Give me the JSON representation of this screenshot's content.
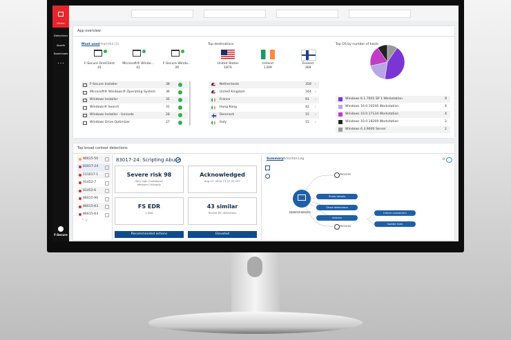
{
  "sidebar": {
    "items": [
      "Home",
      "Detections",
      "Assets",
      "Downloads",
      "• • •"
    ],
    "logo": "F-Secure"
  },
  "app_overview": {
    "title": "App overview",
    "tabs": [
      "Most used",
      "Harmful (1)"
    ],
    "top_apps": [
      {
        "name": "F-Secure OneClient",
        "count": "41"
      },
      {
        "name": "Microsoft® Windo...",
        "count": "41"
      },
      {
        "name": "F-Secure Windo...",
        "count": "39"
      }
    ],
    "rows": [
      {
        "name": "F-Secure Installer",
        "count": "38"
      },
      {
        "name": "Microsoft® Windows® Operating System",
        "count": "36"
      },
      {
        "name": "Windows Installer",
        "count": "35"
      },
      {
        "name": "Windows® Search",
        "count": "31"
      },
      {
        "name": "Windows Installer - Unicode",
        "count": "28"
      },
      {
        "name": "Windows Drive Optimizer",
        "count": "27"
      }
    ]
  },
  "destinations": {
    "title": "Top destinations",
    "top": [
      {
        "name": "United States",
        "count": "1874"
      },
      {
        "name": "Ireland",
        "count": "1309"
      },
      {
        "name": "Finland",
        "count": "368"
      }
    ],
    "rows": [
      {
        "name": "Netherlands",
        "count": "358"
      },
      {
        "name": "United Kingdom",
        "count": "164"
      },
      {
        "name": "France",
        "count": "91"
      },
      {
        "name": "Hong Kong",
        "count": "42"
      },
      {
        "name": "Denmark",
        "count": "15"
      },
      {
        "name": "Italy",
        "count": "15"
      }
    ]
  },
  "os": {
    "title": "Top OS by number of hosts",
    "items": [
      {
        "name": "Windows 6.1.7601 SP 1 Workstation",
        "value": 9,
        "color": "#7a35d4"
      },
      {
        "name": "Windows 10.0.10240 Workstation",
        "value": 4,
        "color": "#b9a6e6"
      },
      {
        "name": "Windows 10.0.17134 Workstation",
        "value": 4,
        "color": "#c23bc6"
      },
      {
        "name": "Windows 10.0.18299 Workstation",
        "value": 2,
        "color": "#222222"
      },
      {
        "name": "Windows 6.3.9600 Server",
        "value": 2,
        "color": "#9a9a9a"
      }
    ]
  },
  "detections": {
    "title": "Top broad context detections",
    "list": [
      "86615-50",
      "83017-24",
      "111017-1",
      "91452-7",
      "91452-6",
      "86615-90",
      "86615-63",
      "86615-63"
    ],
    "detail": {
      "title": "83017-24: Scripting Abuse",
      "cards": [
        {
          "main": "Severe risk 98",
          "sub": [
            "Very high Confidence",
            "Medium Criticality"
          ]
        },
        {
          "main": "Acknowledged",
          "sub": [
            "Aug 07, 2018 21:07:32 UTC"
          ]
        },
        {
          "main": "FS EDR",
          "sub": [
            "1 host"
          ]
        },
        {
          "main": "43 similar",
          "sub": [
            "Recent BC detections"
          ]
        }
      ],
      "buttons": [
        "Recommended actions",
        "Elevated"
      ]
    },
    "graph": {
      "tabs": [
        "Summary",
        "Activities",
        "Log"
      ],
      "count": "0",
      "process_top": "PROCESS",
      "process_bottom": "PROCESS",
      "host": "DESKTOP-D8SOES",
      "actions": [
        "Show details",
        "Show detections",
        "Actions"
      ],
      "sub_actions": [
        "Inform customers",
        "Isolate host"
      ]
    }
  }
}
